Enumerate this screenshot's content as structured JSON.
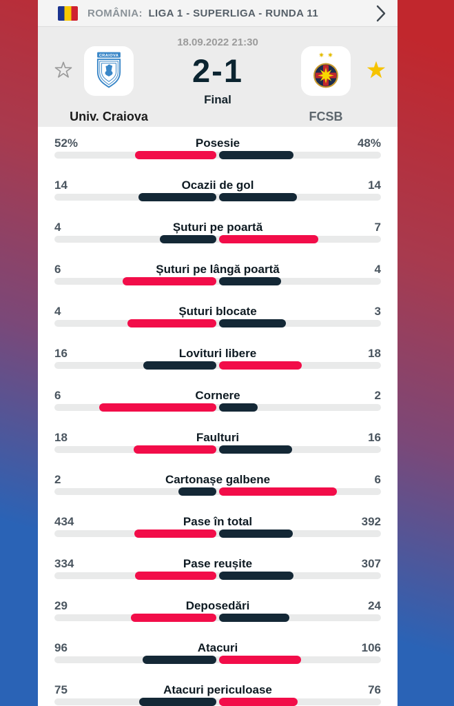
{
  "league_header": {
    "country_label": "ROMÂNIA:",
    "competition_label": "LIGA 1 - SUPERLIGA - RUNDA 11"
  },
  "scoreboard": {
    "datetime": "18.09.2022 21:30",
    "score": "2-1",
    "status": "Final",
    "home": {
      "name": "Univ. Craiova",
      "favorite": false
    },
    "away": {
      "name": "FCSB",
      "favorite": true
    }
  },
  "stats": {
    "rows": [
      {
        "label": "Posesie",
        "home": "52%",
        "away": "48%"
      },
      {
        "label": "Ocazii de gol",
        "home": "14",
        "away": "14"
      },
      {
        "label": "Șuturi pe poartă",
        "home": "4",
        "away": "7"
      },
      {
        "label": "Șuturi pe lângă poartă",
        "home": "6",
        "away": "4"
      },
      {
        "label": "Șuturi blocate",
        "home": "4",
        "away": "3"
      },
      {
        "label": "Lovituri libere",
        "home": "16",
        "away": "18"
      },
      {
        "label": "Cornere",
        "home": "6",
        "away": "2"
      },
      {
        "label": "Faulturi",
        "home": "18",
        "away": "16"
      },
      {
        "label": "Cartonașe galbene",
        "home": "2",
        "away": "6"
      },
      {
        "label": "Pase în total",
        "home": "434",
        "away": "392"
      },
      {
        "label": "Pase reușite",
        "home": "334",
        "away": "307"
      },
      {
        "label": "Deposedări",
        "home": "29",
        "away": "24"
      },
      {
        "label": "Atacuri",
        "home": "96",
        "away": "106"
      },
      {
        "label": "Atacuri periculoase",
        "home": "75",
        "away": "76"
      }
    ]
  },
  "colors": {
    "bar_highlight": "#f20d49",
    "bar_normal": "#142836",
    "bar_track": "#e9eaea",
    "background_top": "#c1272d",
    "background_bottom": "#2a63b6",
    "favorite_star": "#f6c300",
    "score_text": "#0b2430"
  }
}
